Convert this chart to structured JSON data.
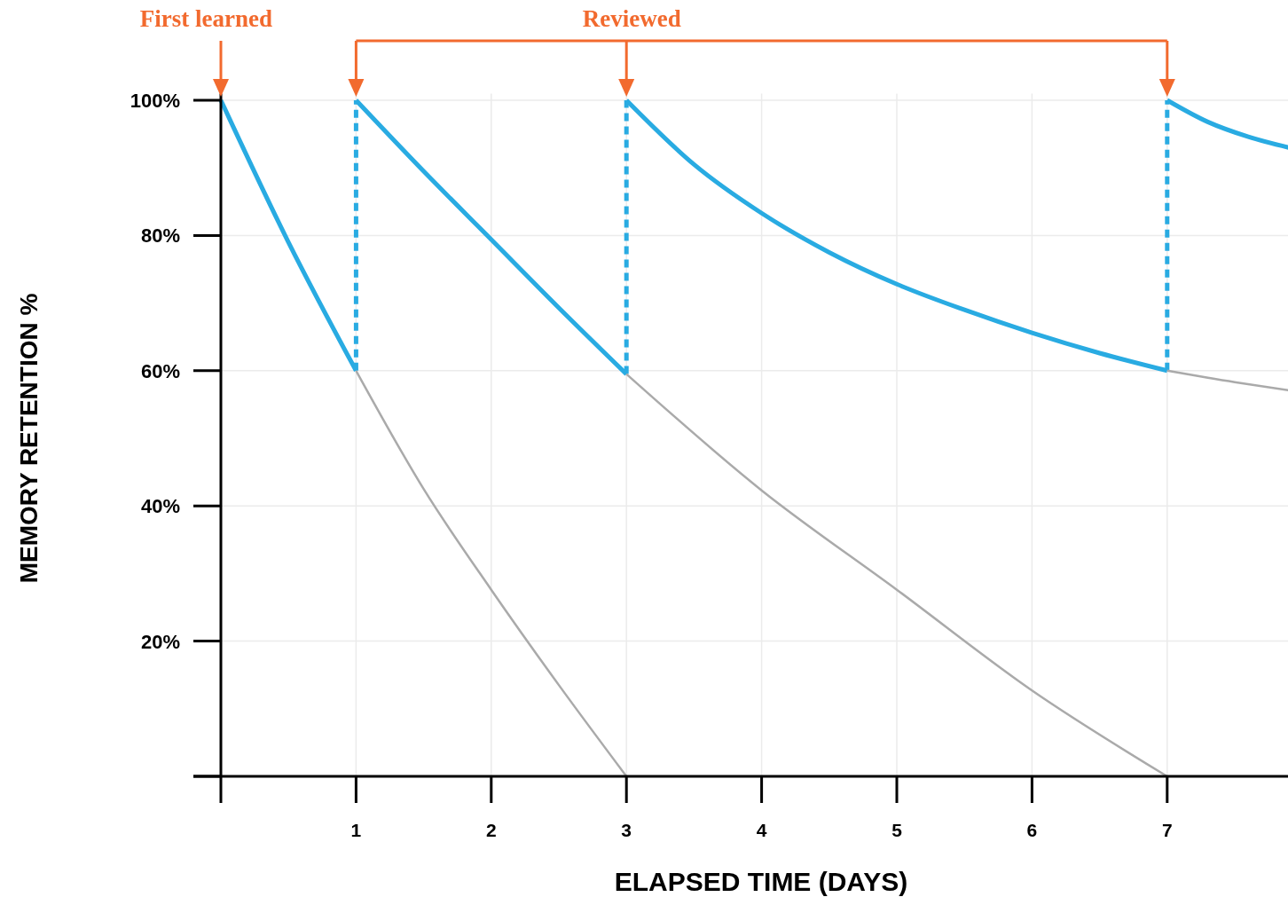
{
  "chart_data": {
    "type": "line",
    "xlabel": "ELAPSED TIME (DAYS)",
    "ylabel": "MEMORY RETENTION %",
    "xlim": [
      0,
      7.9
    ],
    "ylim": [
      0,
      101
    ],
    "xticks": [
      {
        "value": 0,
        "label": null
      },
      1,
      2,
      3,
      4,
      5,
      6,
      7
    ],
    "yticks": [
      {
        "value": 0,
        "label": null
      },
      {
        "value": 20,
        "label": "20%"
      },
      {
        "value": 40,
        "label": "40%"
      },
      {
        "value": 60,
        "label": "60%"
      },
      {
        "value": 80,
        "label": "80%"
      },
      {
        "value": 100,
        "label": "100%"
      }
    ],
    "grid": true,
    "series": [
      {
        "color": "#29abe2",
        "line_style": "solid",
        "x": [
          0,
          0.5,
          1
        ],
        "values": [
          100,
          79,
          60
        ]
      },
      {
        "color": "#29abe2",
        "line_style": "solid",
        "x": [
          1,
          1.5,
          2,
          2.5,
          3
        ],
        "values": [
          100,
          89.5,
          79.4,
          69.3,
          59.5
        ]
      },
      {
        "color": "#29abe2",
        "line_style": "solid",
        "x": [
          3,
          3.5,
          4,
          4.5,
          5,
          5.5,
          6,
          6.5,
          7
        ],
        "values": [
          100,
          90.5,
          83.3,
          77.5,
          72.8,
          69,
          65.6,
          62.6,
          60
        ]
      },
      {
        "color": "#29abe2",
        "line_style": "solid",
        "x": [
          7,
          7.3,
          7.6,
          7.9
        ],
        "values": [
          100,
          96.8,
          94.6,
          93
        ]
      },
      {
        "color": "#29abe2",
        "line_style": "dashed",
        "x": [
          1,
          1
        ],
        "values": [
          60,
          100
        ]
      },
      {
        "color": "#29abe2",
        "line_style": "dashed",
        "x": [
          3,
          3
        ],
        "values": [
          59.5,
          100
        ]
      },
      {
        "color": "#29abe2",
        "line_style": "dashed",
        "x": [
          7,
          7
        ],
        "values": [
          60,
          100
        ]
      },
      {
        "color": "#aaaaaa",
        "line_style": "solid",
        "x": [
          1,
          1.5,
          2,
          2.5,
          3
        ],
        "values": [
          60,
          42.5,
          27.6,
          13.5,
          0
        ]
      },
      {
        "color": "#aaaaaa",
        "line_style": "solid",
        "x": [
          3,
          4,
          5,
          6,
          7
        ],
        "values": [
          59.5,
          42.3,
          27.6,
          12.7,
          0
        ]
      },
      {
        "color": "#aaaaaa",
        "line_style": "solid",
        "x": [
          7,
          7.5,
          7.9
        ],
        "values": [
          60,
          58.3,
          57.1
        ]
      }
    ],
    "annotations": [
      {
        "text": "First learned",
        "x": 0,
        "y": 100
      },
      {
        "text": "Reviewed",
        "x": 3,
        "y": 100
      }
    ]
  }
}
